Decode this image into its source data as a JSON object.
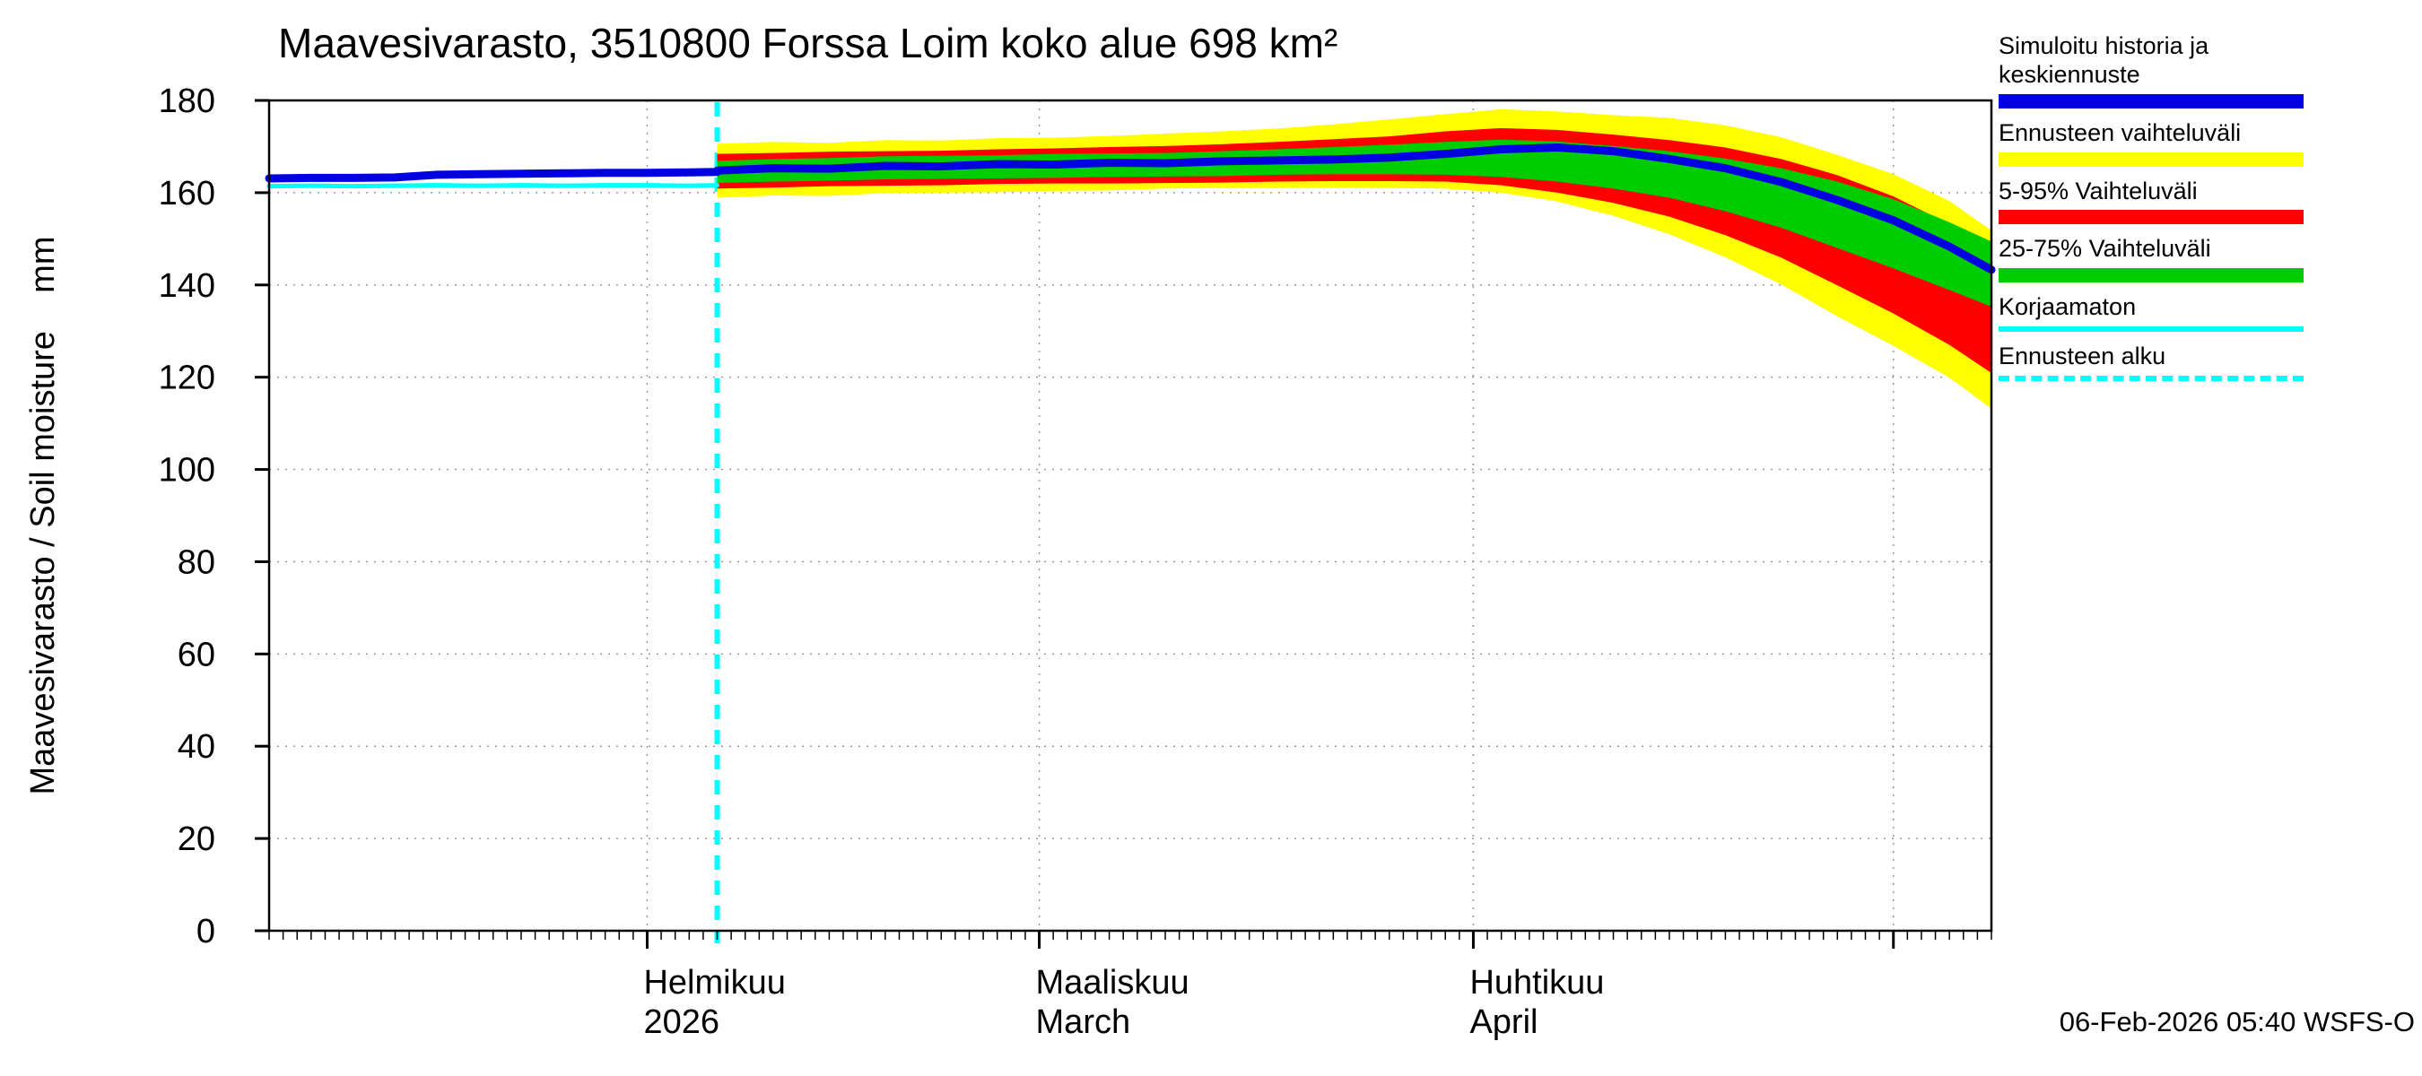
{
  "title": "Maavesivarasto, 3510800 Forssa Loim koko alue 698 km²",
  "ylabel": "Maavesivarasto / Soil moisture    mm",
  "footer": "06-Feb-2026 05:40 WSFS-O",
  "legend": [
    {
      "label": "Simuloitu historia ja keskiennuste",
      "color": "#0000e0",
      "style": "band"
    },
    {
      "label": "Ennusteen vaihteluväli",
      "color": "#ffff00",
      "style": "band"
    },
    {
      "label": "5-95% Vaihteluväli",
      "color": "#ff0000",
      "style": "band"
    },
    {
      "label": "25-75% Vaihteluväli",
      "color": "#00cc00",
      "style": "band"
    },
    {
      "label": "Korjaamaton",
      "color": "#00ffff",
      "style": "line"
    },
    {
      "label": "Ennusteen alku",
      "color": "#00ffff",
      "style": "dashed"
    }
  ],
  "chart_data": {
    "type": "area",
    "title": "Maavesivarasto, 3510800 Forssa Loim koko alue 698 km²",
    "ylabel": "Maavesivarasto / Soil moisture mm",
    "ylim": [
      0,
      180
    ],
    "yticks": [
      0,
      20,
      40,
      60,
      80,
      100,
      120,
      140,
      160,
      180
    ],
    "x_unit": "days_from_5_Jan_2026",
    "x_domain": [
      0,
      123
    ],
    "forecast_start_day": 32,
    "forecast_start_date": "06-Feb-2026",
    "major_tick_days": [
      27,
      55,
      86,
      116
    ],
    "x_months": [
      {
        "day": 27,
        "label1": "Helmikuu",
        "label2": "2026"
      },
      {
        "day": 55,
        "label1": "Maaliskuu",
        "label2": "March"
      },
      {
        "day": 86,
        "label1": "Huhtikuu",
        "label2": "April"
      }
    ],
    "colors": {
      "blue": "#0000e0",
      "yellow": "#ffff00",
      "red": "#ff0000",
      "green": "#00cc00",
      "cyan": "#00ffff",
      "forecast_line": "#00ffff"
    },
    "history": {
      "x": [
        0,
        3,
        6,
        9,
        12,
        15,
        18,
        21,
        24,
        27,
        30,
        32
      ],
      "simulated": [
        163.1,
        163.2,
        163.2,
        163.3,
        163.9,
        164.0,
        164.1,
        164.2,
        164.3,
        164.3,
        164.4,
        164.5
      ],
      "korjaamaton": [
        161.4,
        161.5,
        161.4,
        161.5,
        161.6,
        161.5,
        161.6,
        161.5,
        161.6,
        161.6,
        161.5,
        161.6
      ]
    },
    "forecast": {
      "x": [
        32,
        36,
        40,
        44,
        48,
        52,
        56,
        60,
        64,
        68,
        72,
        76,
        80,
        84,
        88,
        92,
        96,
        100,
        104,
        108,
        112,
        116,
        120,
        123
      ],
      "yellow_top": [
        170.6,
        171.0,
        170.8,
        171.4,
        171.3,
        171.8,
        171.9,
        172.3,
        172.8,
        173.3,
        173.9,
        174.8,
        175.9,
        177.0,
        178.1,
        177.6,
        176.8,
        176.2,
        174.6,
        172.0,
        168.2,
        164.0,
        158.2,
        151.8
      ],
      "yellow_bottom": [
        158.9,
        159.4,
        159.3,
        159.9,
        160.0,
        160.1,
        160.4,
        160.5,
        160.9,
        161.0,
        161.0,
        161.1,
        161.0,
        160.9,
        160.0,
        158.1,
        155.0,
        151.0,
        146.0,
        140.1,
        133.2,
        126.8,
        119.9,
        113.2
      ],
      "red_top": [
        168.4,
        168.6,
        168.9,
        169.0,
        169.1,
        169.4,
        169.6,
        169.9,
        170.1,
        170.5,
        171.0,
        171.6,
        172.2,
        173.3,
        174.0,
        173.6,
        172.6,
        171.4,
        169.8,
        167.3,
        163.8,
        159.2,
        153.2,
        147.9
      ],
      "red_bottom": [
        160.9,
        161.1,
        161.4,
        161.5,
        161.6,
        161.9,
        162.0,
        162.0,
        162.1,
        162.2,
        162.4,
        162.5,
        162.5,
        162.4,
        161.6,
        160.0,
        157.8,
        154.8,
        150.8,
        145.9,
        139.9,
        133.8,
        127.0,
        120.9
      ],
      "green_top": [
        166.9,
        167.3,
        167.5,
        167.9,
        168.0,
        168.1,
        168.4,
        168.5,
        168.6,
        169.0,
        169.4,
        169.9,
        170.4,
        171.0,
        171.5,
        171.1,
        170.1,
        169.0,
        167.4,
        165.3,
        162.4,
        158.6,
        153.6,
        149.4
      ],
      "green_bottom": [
        162.1,
        162.4,
        162.6,
        162.9,
        163.0,
        163.1,
        163.2,
        163.4,
        163.5,
        163.6,
        163.9,
        164.0,
        164.0,
        163.9,
        163.4,
        162.4,
        160.9,
        158.9,
        156.0,
        152.4,
        148.0,
        143.6,
        138.9,
        135.3
      ],
      "median": [
        164.8,
        165.3,
        165.2,
        165.8,
        165.7,
        166.2,
        166.1,
        166.5,
        166.4,
        166.8,
        167.0,
        167.2,
        167.6,
        168.4,
        169.4,
        169.8,
        169.0,
        167.3,
        165.3,
        162.3,
        158.4,
        154.0,
        148.3,
        143.3
      ]
    }
  }
}
